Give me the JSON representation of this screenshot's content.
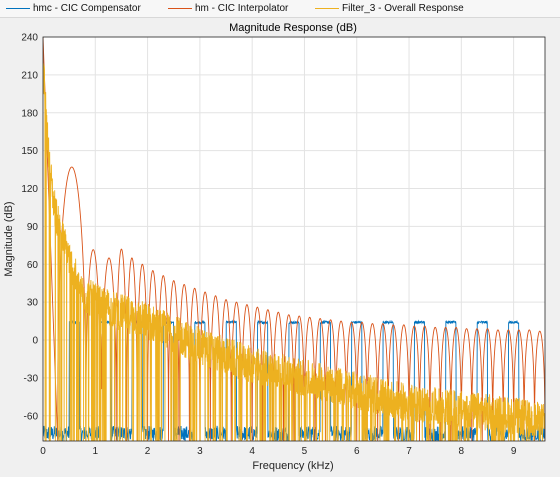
{
  "legend": {
    "items": [
      {
        "label": "hmc - CIC Compensator",
        "color": "#0072BD"
      },
      {
        "label": "hm - CIC Interpolator",
        "color": "#D95319"
      },
      {
        "label": "Filter_3 - Overall Response",
        "color": "#EDB120"
      }
    ]
  },
  "chart_data": {
    "type": "line",
    "title": "Magnitude Response (dB)",
    "xlabel": "Frequency (kHz)",
    "ylabel": "Magnitude (dB)",
    "xlim": [
      0,
      9.6
    ],
    "ylim": [
      -80,
      240
    ],
    "xticks": [
      0,
      1,
      2,
      3,
      4,
      5,
      6,
      7,
      8,
      9
    ],
    "yticks": [
      240,
      210,
      180,
      150,
      120,
      90,
      60,
      30,
      0,
      -30,
      -60
    ],
    "grid": true,
    "legend_position": "top",
    "series": [
      {
        "name": "hmc - CIC Compensator",
        "color": "#0072BD",
        "description_points": {
          "passband_level_db": 14,
          "noise_floor_db_range": [
            -80,
            -68
          ],
          "passband_centers_khz": [
            0.6,
            1.2,
            1.8,
            2.4,
            3.0,
            3.6,
            4.2,
            4.8,
            5.4,
            6.0,
            6.6,
            7.2,
            7.8,
            8.4,
            9.0
          ],
          "first_passband_khz": [
            0.5,
            0.7
          ]
        }
      },
      {
        "name": "hm - CIC Interpolator",
        "color": "#D95319",
        "x": [
          0.0,
          0.28,
          0.55,
          0.82,
          1.0,
          1.1,
          1.3,
          1.5,
          1.7,
          1.9,
          2.1,
          2.3,
          2.5,
          2.7,
          2.9,
          3.1,
          3.3,
          3.5,
          3.7,
          3.9,
          4.1,
          4.3,
          4.5,
          4.7,
          4.9,
          5.1,
          5.3,
          5.5,
          5.7,
          5.9,
          6.1,
          6.3,
          6.5,
          6.7,
          6.9,
          7.1,
          7.3,
          7.5,
          7.7,
          7.9,
          8.1,
          8.3,
          8.5,
          8.7,
          8.9,
          9.1,
          9.3,
          9.5
        ],
        "y": [
          240,
          -80,
          137,
          -80,
          92,
          -80,
          80,
          72,
          65,
          60,
          55,
          51,
          47,
          44,
          41,
          38,
          35,
          32,
          30,
          28,
          26,
          24,
          22,
          20,
          19,
          18,
          17,
          16,
          15,
          14,
          14,
          13,
          13,
          12,
          12,
          11,
          11,
          10,
          10,
          10,
          9,
          9,
          9,
          8,
          8,
          8,
          8,
          7
        ],
        "lobe_peaks_khz": [
          0.44,
          0.95,
          1.3,
          1.5,
          1.7,
          1.9,
          2.1,
          2.3,
          2.5,
          2.7,
          2.9,
          3.1,
          3.3,
          3.5,
          3.7,
          3.9,
          4.1,
          4.3,
          4.5,
          4.7,
          4.9,
          5.1,
          5.3,
          5.5,
          5.7,
          5.9,
          6.1,
          6.3,
          6.5,
          6.7,
          6.9,
          7.1,
          7.3,
          7.5,
          7.7,
          7.9,
          8.1,
          8.3,
          8.5,
          8.7,
          8.9,
          9.1,
          9.3,
          9.5
        ]
      },
      {
        "name": "Filter_3 - Overall Response",
        "color": "#EDB120",
        "x": [
          0.0,
          0.1,
          0.2,
          0.3,
          0.5,
          0.7,
          1.0,
          1.5,
          2.0,
          2.5,
          3.0,
          4.0,
          5.0,
          6.0,
          7.0,
          8.0,
          9.0,
          9.6
        ],
        "y": [
          220,
          150,
          110,
          90,
          65,
          40,
          30,
          22,
          15,
          5,
          -5,
          -20,
          -30,
          -40,
          -50,
          -55,
          -60,
          -65
        ]
      }
    ]
  }
}
